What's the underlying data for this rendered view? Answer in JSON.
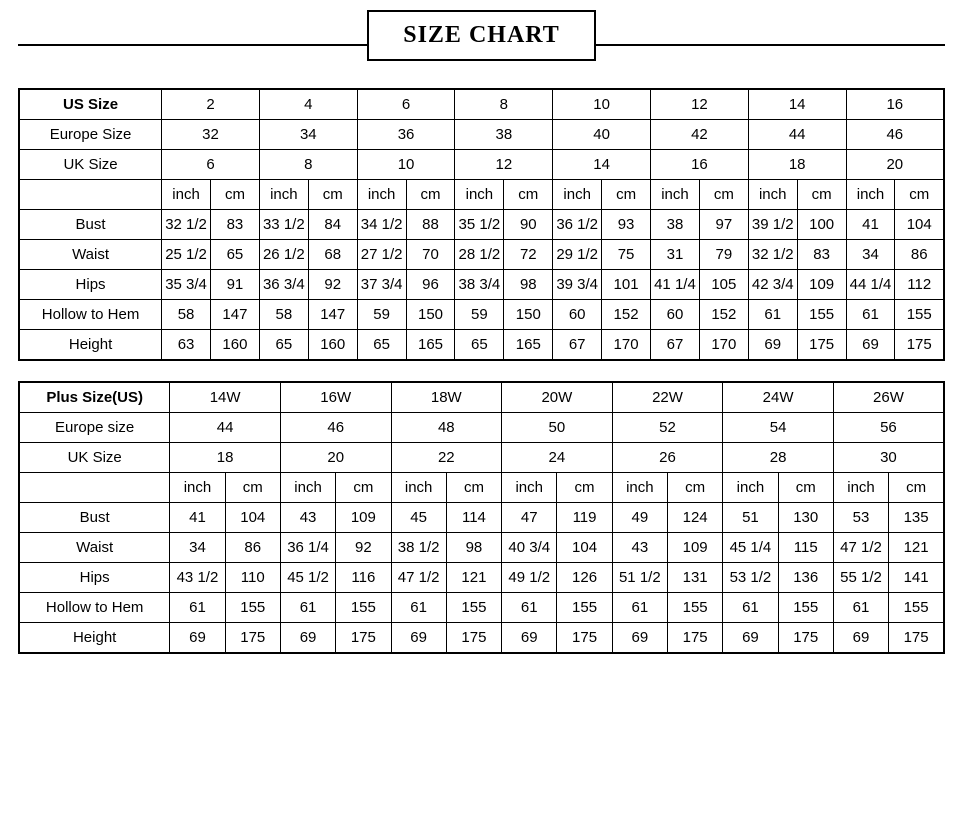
{
  "title": "SIZE CHART",
  "table1": {
    "headerLabels": [
      "US Size",
      "Europe Size",
      "UK Size"
    ],
    "usSizes": [
      "2",
      "4",
      "6",
      "8",
      "10",
      "12",
      "14",
      "16"
    ],
    "europeSizes": [
      "32",
      "34",
      "36",
      "38",
      "40",
      "42",
      "44",
      "46"
    ],
    "ukSizes": [
      "6",
      "8",
      "10",
      "12",
      "14",
      "16",
      "18",
      "20"
    ],
    "unitLabels": [
      "inch",
      "cm"
    ],
    "measureRows": [
      {
        "label": "Bust",
        "cells": [
          [
            "32 1/2",
            "83"
          ],
          [
            "33 1/2",
            "84"
          ],
          [
            "34 1/2",
            "88"
          ],
          [
            "35 1/2",
            "90"
          ],
          [
            "36 1/2",
            "93"
          ],
          [
            "38",
            "97"
          ],
          [
            "39 1/2",
            "100"
          ],
          [
            "41",
            "104"
          ]
        ]
      },
      {
        "label": "Waist",
        "cells": [
          [
            "25 1/2",
            "65"
          ],
          [
            "26 1/2",
            "68"
          ],
          [
            "27 1/2",
            "70"
          ],
          [
            "28 1/2",
            "72"
          ],
          [
            "29 1/2",
            "75"
          ],
          [
            "31",
            "79"
          ],
          [
            "32 1/2",
            "83"
          ],
          [
            "34",
            "86"
          ]
        ]
      },
      {
        "label": "Hips",
        "cells": [
          [
            "35 3/4",
            "91"
          ],
          [
            "36 3/4",
            "92"
          ],
          [
            "37 3/4",
            "96"
          ],
          [
            "38 3/4",
            "98"
          ],
          [
            "39 3/4",
            "101"
          ],
          [
            "41 1/4",
            "105"
          ],
          [
            "42 3/4",
            "109"
          ],
          [
            "44 1/4",
            "112"
          ]
        ]
      },
      {
        "label": "Hollow to Hem",
        "cells": [
          [
            "58",
            "147"
          ],
          [
            "58",
            "147"
          ],
          [
            "59",
            "150"
          ],
          [
            "59",
            "150"
          ],
          [
            "60",
            "152"
          ],
          [
            "60",
            "152"
          ],
          [
            "61",
            "155"
          ],
          [
            "61",
            "155"
          ]
        ]
      },
      {
        "label": "Height",
        "cells": [
          [
            "63",
            "160"
          ],
          [
            "65",
            "160"
          ],
          [
            "65",
            "165"
          ],
          [
            "65",
            "165"
          ],
          [
            "67",
            "170"
          ],
          [
            "67",
            "170"
          ],
          [
            "69",
            "175"
          ],
          [
            "69",
            "175"
          ]
        ]
      }
    ]
  },
  "table2": {
    "headerLabels": [
      "Plus Size(US)",
      "Europe size",
      "UK Size"
    ],
    "usSizes": [
      "14W",
      "16W",
      "18W",
      "20W",
      "22W",
      "24W",
      "26W"
    ],
    "europeSizes": [
      "44",
      "46",
      "48",
      "50",
      "52",
      "54",
      "56"
    ],
    "ukSizes": [
      "18",
      "20",
      "22",
      "24",
      "26",
      "28",
      "30"
    ],
    "unitLabels": [
      "inch",
      "cm"
    ],
    "measureRows": [
      {
        "label": "Bust",
        "cells": [
          [
            "41",
            "104"
          ],
          [
            "43",
            "109"
          ],
          [
            "45",
            "114"
          ],
          [
            "47",
            "119"
          ],
          [
            "49",
            "124"
          ],
          [
            "51",
            "130"
          ],
          [
            "53",
            "135"
          ]
        ]
      },
      {
        "label": "Waist",
        "cells": [
          [
            "34",
            "86"
          ],
          [
            "36 1/4",
            "92"
          ],
          [
            "38 1/2",
            "98"
          ],
          [
            "40 3/4",
            "104"
          ],
          [
            "43",
            "109"
          ],
          [
            "45 1/4",
            "115"
          ],
          [
            "47 1/2",
            "121"
          ]
        ]
      },
      {
        "label": "Hips",
        "cells": [
          [
            "43 1/2",
            "110"
          ],
          [
            "45 1/2",
            "116"
          ],
          [
            "47 1/2",
            "121"
          ],
          [
            "49 1/2",
            "126"
          ],
          [
            "51 1/2",
            "131"
          ],
          [
            "53 1/2",
            "136"
          ],
          [
            "55 1/2",
            "141"
          ]
        ]
      },
      {
        "label": "Hollow to Hem",
        "cells": [
          [
            "61",
            "155"
          ],
          [
            "61",
            "155"
          ],
          [
            "61",
            "155"
          ],
          [
            "61",
            "155"
          ],
          [
            "61",
            "155"
          ],
          [
            "61",
            "155"
          ],
          [
            "61",
            "155"
          ]
        ]
      },
      {
        "label": "Height",
        "cells": [
          [
            "69",
            "175"
          ],
          [
            "69",
            "175"
          ],
          [
            "69",
            "175"
          ],
          [
            "69",
            "175"
          ],
          [
            "69",
            "175"
          ],
          [
            "69",
            "175"
          ],
          [
            "69",
            "175"
          ]
        ]
      }
    ]
  },
  "style": {
    "borderColor": "#000000",
    "background": "#ffffff",
    "titleFont": "Times New Roman, serif",
    "cellFontSize": 15,
    "titleFontSize": 24
  }
}
